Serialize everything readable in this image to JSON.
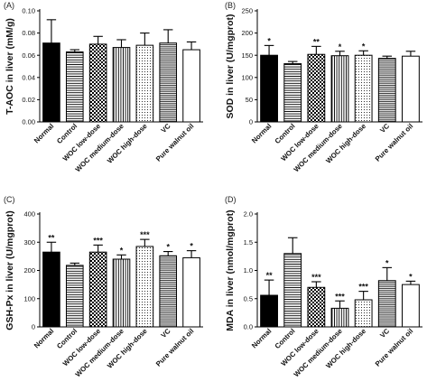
{
  "chart_data": [
    {
      "type": "bar",
      "panel_label": "(A)",
      "ylabel": "T-AOC in liver (mM/g)",
      "categories": [
        "Normal",
        "Control",
        "WOC low-dose",
        "WOC medium-dose",
        "WOC high-dose",
        "VC",
        "Pure walnut oil"
      ],
      "values": [
        0.071,
        0.063,
        0.07,
        0.067,
        0.069,
        0.071,
        0.065
      ],
      "errors": [
        0.021,
        0.002,
        0.007,
        0.007,
        0.011,
        0.012,
        0.007
      ],
      "significance": [
        "",
        "",
        "",
        "",
        "",
        "",
        ""
      ],
      "ylim": [
        0,
        0.1
      ],
      "yticks": [
        0.0,
        0.02,
        0.04,
        0.06,
        0.08,
        0.1
      ],
      "ytick_labels": [
        "0.00",
        "0.02",
        "0.04",
        "0.06",
        "0.08",
        "0.10"
      ],
      "fills": [
        "solid-black",
        "horizontal-lines",
        "checker",
        "vertical-lines",
        "dots",
        "horizontal-lines-fine",
        "white"
      ]
    },
    {
      "type": "bar",
      "panel_label": "(B)",
      "ylabel": "SOD in liver (U/mgprot)",
      "categories": [
        "Normal",
        "Control",
        "WOC low-dose",
        "WOC medium-dose",
        "WOC high-dose",
        "VC",
        "Pure walnut oil"
      ],
      "values": [
        150,
        131,
        152,
        149,
        150,
        143,
        148
      ],
      "errors": [
        22,
        5,
        18,
        10,
        10,
        5,
        11
      ],
      "significance": [
        "*",
        "",
        "**",
        "*",
        "*",
        "",
        ""
      ],
      "ylim": [
        0,
        250
      ],
      "yticks": [
        0,
        50,
        100,
        150,
        200,
        250
      ],
      "ytick_labels": [
        "0",
        "50",
        "100",
        "150",
        "200",
        "250"
      ],
      "fills": [
        "solid-black",
        "horizontal-lines",
        "checker",
        "vertical-lines",
        "dots",
        "horizontal-lines-fine",
        "white"
      ]
    },
    {
      "type": "bar",
      "panel_label": "(C)",
      "ylabel": "GSH-Px in liver (U/mgprot)",
      "categories": [
        "Normal",
        "Control",
        "WOC low-dose",
        "WOC medium-dose",
        "WOC high-dose",
        "VC",
        "Pure walnut oil"
      ],
      "values": [
        265,
        218,
        265,
        240,
        285,
        252,
        245
      ],
      "errors": [
        35,
        8,
        25,
        15,
        25,
        15,
        25
      ],
      "significance": [
        "**",
        "",
        "***",
        "*",
        "***",
        "*",
        "*"
      ],
      "ylim": [
        0,
        400
      ],
      "yticks": [
        0,
        100,
        200,
        300,
        400
      ],
      "ytick_labels": [
        "0",
        "100",
        "200",
        "300",
        "400"
      ],
      "fills": [
        "solid-black",
        "horizontal-lines",
        "checker",
        "vertical-lines",
        "dots",
        "horizontal-lines-fine",
        "white"
      ]
    },
    {
      "type": "bar",
      "panel_label": "(D)",
      "ylabel": "MDA in liver (nmol/mgprot)",
      "categories": [
        "Normal",
        "Control",
        "WOC low-dose",
        "WOC medium-dose",
        "WOC high-dose",
        "VC",
        "Pure walnut oil"
      ],
      "values": [
        0.56,
        1.3,
        0.7,
        0.33,
        0.48,
        0.82,
        0.75
      ],
      "errors": [
        0.27,
        0.28,
        0.1,
        0.13,
        0.15,
        0.23,
        0.06
      ],
      "significance": [
        "**",
        "",
        "***",
        "***",
        "***",
        "*",
        "*"
      ],
      "ylim": [
        0,
        2.0
      ],
      "yticks": [
        0.0,
        0.5,
        1.0,
        1.5,
        2.0
      ],
      "ytick_labels": [
        "0.0",
        "0.5",
        "1.0",
        "1.5",
        "2.0"
      ],
      "fills": [
        "solid-black",
        "horizontal-lines",
        "checker",
        "vertical-lines",
        "dots",
        "horizontal-lines-fine",
        "white"
      ]
    }
  ]
}
